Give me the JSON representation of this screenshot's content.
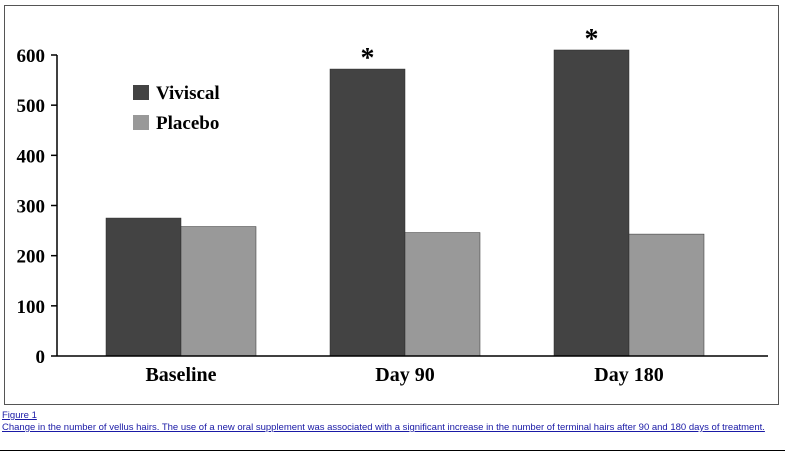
{
  "chart_data": {
    "type": "bar",
    "categories": [
      "Baseline",
      "Day 90",
      "Day 180"
    ],
    "series": [
      {
        "name": "Viviscal",
        "values": [
          275,
          572,
          610
        ],
        "color": "#434343"
      },
      {
        "name": "Placebo",
        "values": [
          258,
          246,
          243
        ],
        "color": "#999999"
      }
    ],
    "ylim": [
      0,
      600
    ],
    "yticks": [
      0,
      100,
      200,
      300,
      400,
      500,
      600
    ],
    "ytick_labels": [
      "0",
      "100",
      "200",
      "300",
      "400",
      "500",
      "600"
    ],
    "annotations": [
      {
        "category": "Day 90",
        "series": "Viviscal",
        "text": "*"
      },
      {
        "category": "Day 180",
        "series": "Viviscal",
        "text": "*"
      }
    ],
    "legend_position": "top-left",
    "grid": false
  },
  "caption": {
    "label": "Figure 1",
    "text": "Change in the number of vellus hairs. The use of a new oral supplement was associated with a significant increase in the number of terminal hairs after 90 and 180 days of treatment."
  }
}
